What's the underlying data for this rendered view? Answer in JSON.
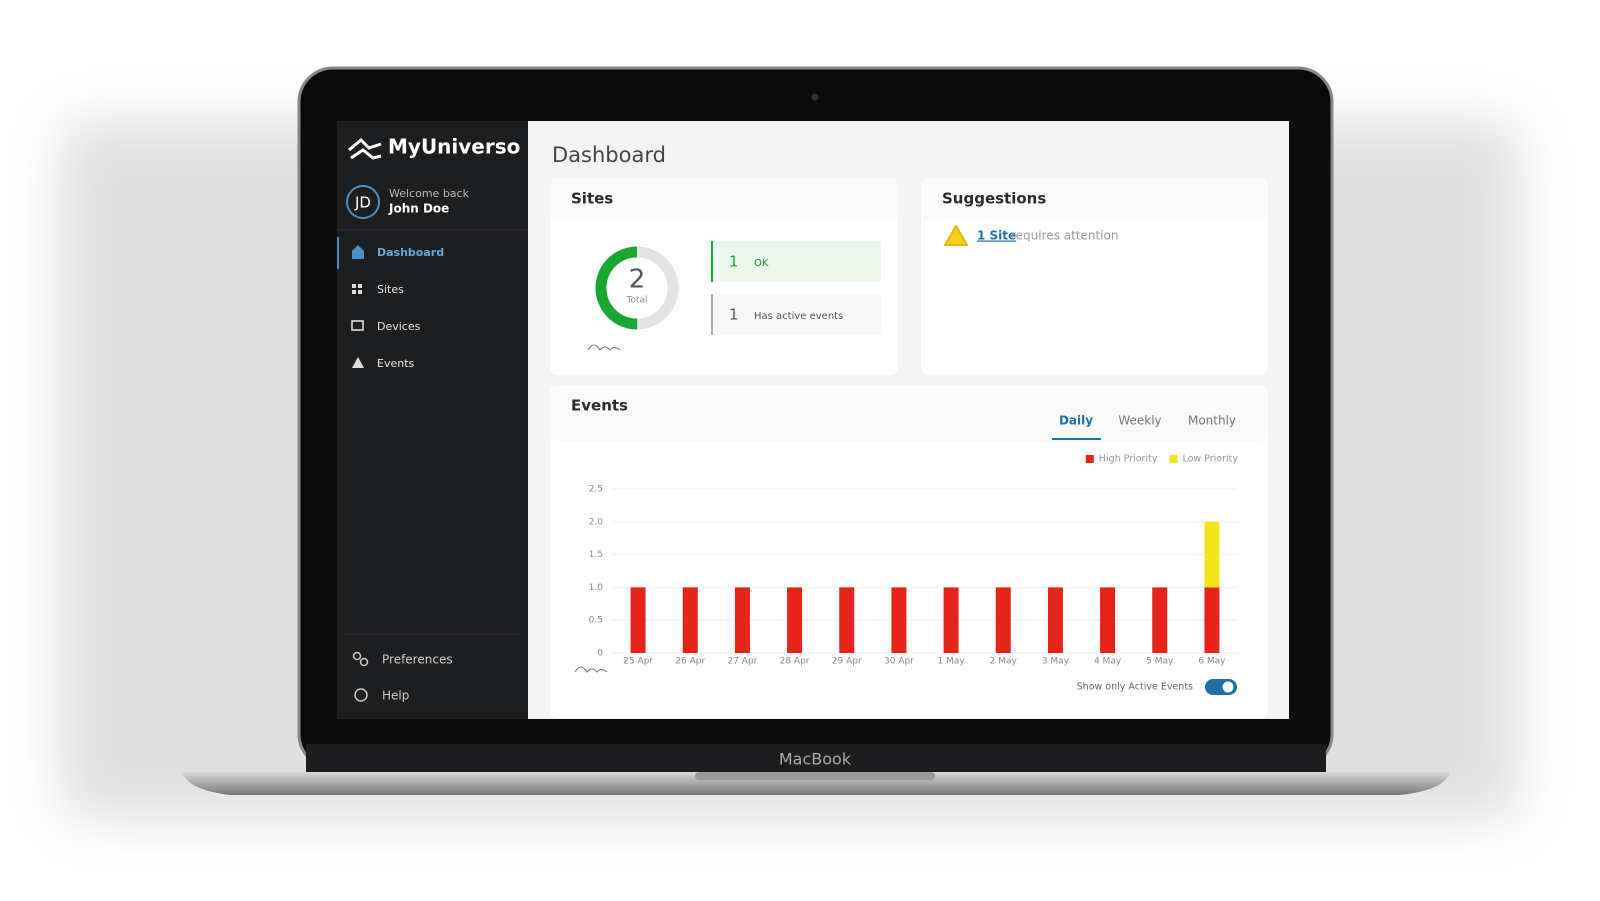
{
  "device_label": "MacBook",
  "sidebar": {
    "brand": "MyUniverso",
    "avatar": "JD",
    "welcome": "Welcome back",
    "user": "John Doe",
    "nav": [
      "Dashboard",
      "Sites",
      "Devices",
      "Events"
    ],
    "footer": [
      "Preferences",
      "Help"
    ]
  },
  "page_title": "Dashboard",
  "sites": {
    "title": "Sites",
    "total": 2,
    "total_label": "Total",
    "ok": {
      "count": 1,
      "label": "OK",
      "color": "#1aa632"
    },
    "active": {
      "count": 1,
      "label": "Has active events",
      "color": "#e3e3e3"
    }
  },
  "suggestions": {
    "title": "Suggestions",
    "link": "1 Site",
    "text": "requires attention"
  },
  "events": {
    "title": "Events",
    "tabs": [
      "Daily",
      "Weekly",
      "Monthly"
    ],
    "toggle_label": "Show only Active Events"
  },
  "chart_data": {
    "type": "bar",
    "stacked": true,
    "categories": [
      "25 Apr",
      "26 Apr",
      "27 Apr",
      "28 Apr",
      "29 Apr",
      "30 Apr",
      "1 May",
      "2 May",
      "3 May",
      "4 May",
      "5 May",
      "6 May"
    ],
    "series": [
      {
        "name": "High Priority",
        "color": "#e5251c",
        "values": [
          1,
          1,
          1,
          1,
          1,
          1,
          1,
          1,
          1,
          1,
          1,
          1
        ]
      },
      {
        "name": "Low Priority",
        "color": "#f2e41a",
        "values": [
          0,
          0,
          0,
          0,
          0,
          0,
          0,
          0,
          0,
          0,
          0,
          1
        ]
      }
    ],
    "ylim": [
      0,
      2.5
    ],
    "yticks": [
      0,
      0.5,
      {
        "value": 1,
        "label": "1.0"
      },
      1.5,
      {
        "value": 2,
        "label": "2.0"
      },
      2.5
    ],
    "grid": true,
    "legend": "top-right"
  }
}
